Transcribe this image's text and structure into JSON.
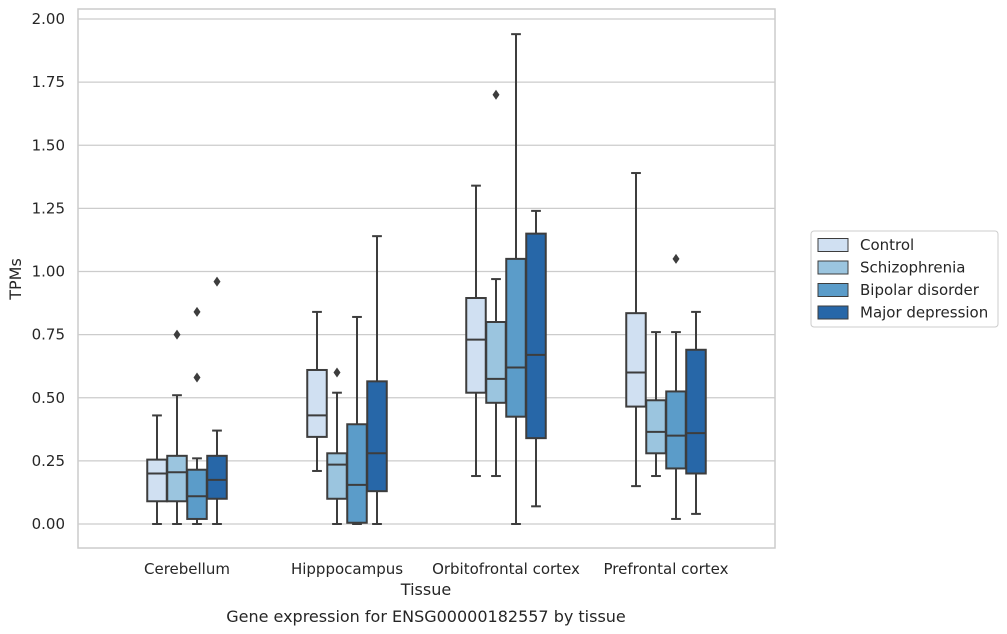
{
  "caption": "Gene expression for ENSG00000182557 by tissue",
  "chart_data": {
    "type": "box",
    "xlabel": "Tissue",
    "ylabel": "TPMs",
    "ylim": [
      -0.09,
      2.04
    ],
    "yticks": [
      "0.00",
      "0.25",
      "0.50",
      "0.75",
      "1.00",
      "1.25",
      "1.50",
      "1.75",
      "2.00"
    ],
    "ytick_values": [
      0,
      0.25,
      0.5,
      0.75,
      1.0,
      1.25,
      1.5,
      1.75,
      2.0
    ],
    "grid": "horizontal",
    "legend_position": "right",
    "categories": [
      "Cerebellum",
      "Hipppocampus",
      "Orbitofrontal cortex",
      "Prefrontal cortex"
    ],
    "series": [
      {
        "name": "Control",
        "color": "#d0e0f2",
        "boxes": [
          {
            "whisker_low": 0.0,
            "q1": 0.09,
            "median": 0.2,
            "q3": 0.255,
            "whisker_high": 0.43,
            "outliers": []
          },
          {
            "whisker_low": 0.21,
            "q1": 0.345,
            "median": 0.43,
            "q3": 0.61,
            "whisker_high": 0.84,
            "outliers": []
          },
          {
            "whisker_low": 0.19,
            "q1": 0.52,
            "median": 0.73,
            "q3": 0.895,
            "whisker_high": 1.34,
            "outliers": []
          },
          {
            "whisker_low": 0.15,
            "q1": 0.465,
            "median": 0.6,
            "q3": 0.835,
            "whisker_high": 1.39,
            "outliers": []
          }
        ]
      },
      {
        "name": "Schizophrenia",
        "color": "#9bc5df",
        "boxes": [
          {
            "whisker_low": 0.0,
            "q1": 0.09,
            "median": 0.205,
            "q3": 0.27,
            "whisker_high": 0.51,
            "outliers": [
              0.75
            ]
          },
          {
            "whisker_low": 0.0,
            "q1": 0.1,
            "median": 0.235,
            "q3": 0.28,
            "whisker_high": 0.52,
            "outliers": [
              0.6
            ]
          },
          {
            "whisker_low": 0.19,
            "q1": 0.48,
            "median": 0.575,
            "q3": 0.8,
            "whisker_high": 0.97,
            "outliers": [
              1.7
            ]
          },
          {
            "whisker_low": 0.19,
            "q1": 0.28,
            "median": 0.365,
            "q3": 0.49,
            "whisker_high": 0.76,
            "outliers": []
          }
        ]
      },
      {
        "name": "Bipolar disorder",
        "color": "#5b9cc9",
        "boxes": [
          {
            "whisker_low": 0.0,
            "q1": 0.02,
            "median": 0.11,
            "q3": 0.215,
            "whisker_high": 0.26,
            "outliers": [
              0.58,
              0.84
            ]
          },
          {
            "whisker_low": 0.0,
            "q1": 0.005,
            "median": 0.155,
            "q3": 0.395,
            "whisker_high": 0.82,
            "outliers": []
          },
          {
            "whisker_low": 0.0,
            "q1": 0.425,
            "median": 0.62,
            "q3": 1.05,
            "whisker_high": 1.94,
            "outliers": []
          },
          {
            "whisker_low": 0.02,
            "q1": 0.22,
            "median": 0.35,
            "q3": 0.525,
            "whisker_high": 0.76,
            "outliers": [
              1.05
            ]
          }
        ]
      },
      {
        "name": "Major depression",
        "color": "#2767a8",
        "boxes": [
          {
            "whisker_low": 0.0,
            "q1": 0.1,
            "median": 0.175,
            "q3": 0.27,
            "whisker_high": 0.37,
            "outliers": [
              0.96
            ]
          },
          {
            "whisker_low": 0.0,
            "q1": 0.13,
            "median": 0.28,
            "q3": 0.565,
            "whisker_high": 1.14,
            "outliers": []
          },
          {
            "whisker_low": 0.07,
            "q1": 0.34,
            "median": 0.67,
            "q3": 1.15,
            "whisker_high": 1.24,
            "outliers": []
          },
          {
            "whisker_low": 0.04,
            "q1": 0.2,
            "median": 0.36,
            "q3": 0.69,
            "whisker_high": 0.84,
            "outliers": []
          }
        ]
      }
    ]
  }
}
